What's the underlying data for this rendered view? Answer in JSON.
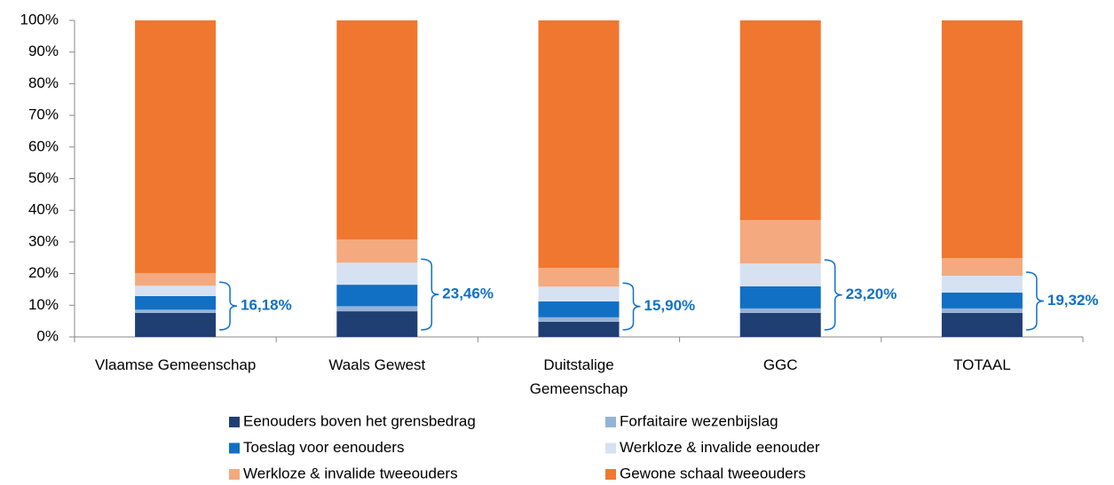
{
  "chart_data": {
    "type": "stacked_bar",
    "categories": [
      "Vlaamse Gemeenschap",
      "Waals Gewest",
      "Duitstalige\nGemeenschap",
      "GGC",
      "TOTAAL"
    ],
    "series": [
      {
        "name": "Eenouders boven het grensbedrag",
        "color": "#1f3f73",
        "values": [
          7.6,
          8.1,
          4.8,
          7.6,
          7.6
        ]
      },
      {
        "name": "Forfaitaire wezenbijslag",
        "color": "#95b3d7",
        "values": [
          1.0,
          1.6,
          1.4,
          1.4,
          1.4
        ]
      },
      {
        "name": "Toeslag voor eenouders",
        "color": "#1170c4",
        "values": [
          4.3,
          6.8,
          5.0,
          7.0,
          5.0
        ]
      },
      {
        "name": "Werkloze & invalide eenouder",
        "color": "#d6e2f1",
        "values": [
          3.28,
          6.96,
          4.7,
          7.2,
          5.32
        ]
      },
      {
        "name": "Werkloze & invalide tweeouders",
        "color": "#f4a97e",
        "values": [
          4.0,
          7.3,
          5.9,
          13.7,
          5.6
        ]
      },
      {
        "name": "Gewone schaal tweeouders",
        "color": "#f07730",
        "values": [
          79.82,
          69.24,
          78.2,
          63.1,
          75.08
        ]
      }
    ],
    "annotations": [
      "16,18%",
      "23,46%",
      "15,90%",
      "23,20%",
      "19,32%"
    ],
    "annotation_color": "#1170c4",
    "ylim": [
      0,
      100
    ],
    "yticks": [
      {
        "value": 0,
        "label": "0%"
      },
      {
        "value": 10,
        "label": "10%"
      },
      {
        "value": 20,
        "label": "20%"
      },
      {
        "value": 30,
        "label": "30%"
      },
      {
        "value": 40,
        "label": "40%"
      },
      {
        "value": 50,
        "label": "50%"
      },
      {
        "value": 60,
        "label": "60%"
      },
      {
        "value": 70,
        "label": "70%"
      },
      {
        "value": 80,
        "label": "80%"
      },
      {
        "value": 90,
        "label": "90%"
      },
      {
        "value": 100,
        "label": "100%"
      }
    ],
    "grid": false
  }
}
